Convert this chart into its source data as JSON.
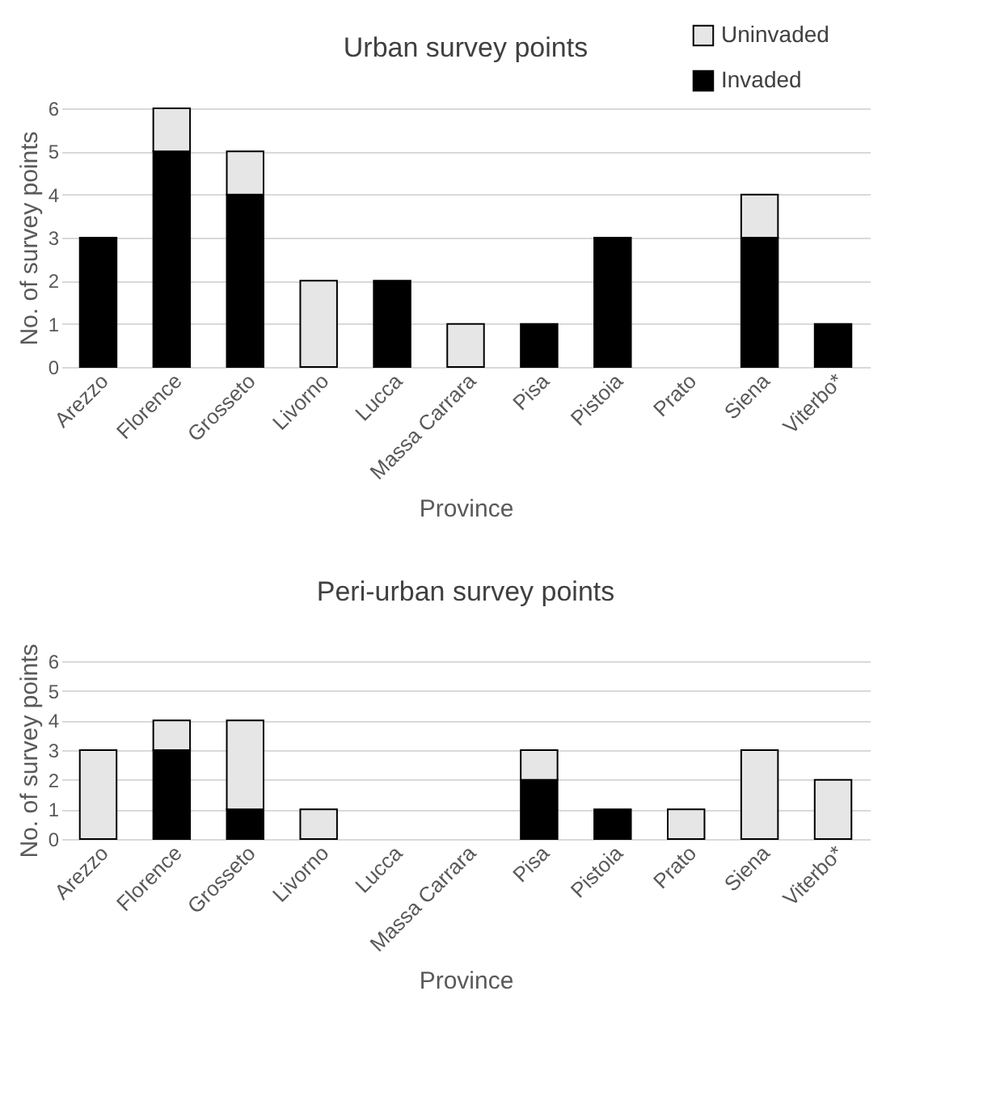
{
  "chart_data": [
    {
      "type": "bar",
      "title": "Urban survey points",
      "xlabel": "Province",
      "ylabel": "No. of survey points",
      "categories": [
        "Arezzo",
        "Florence",
        "Grosseto",
        "Livorno",
        "Lucca",
        "Massa Carrara",
        "Pisa",
        "Pistoia",
        "Prato",
        "Siena",
        "Viterbo*"
      ],
      "stacked": true,
      "ylim": [
        0,
        6
      ],
      "yticks": [
        0,
        1,
        2,
        3,
        4,
        5,
        6
      ],
      "grid": "y",
      "legend": "top right",
      "series": [
        {
          "name": "Invaded",
          "color": "#000000",
          "values": [
            3,
            5,
            4,
            0,
            2,
            0,
            1,
            3,
            0,
            3,
            1
          ]
        },
        {
          "name": "Uninvaded",
          "color": "#e7e6e6",
          "values": [
            0,
            1,
            1,
            2,
            0,
            1,
            0,
            0,
            0,
            1,
            0
          ]
        }
      ]
    },
    {
      "type": "bar",
      "title": "Peri-urban survey points",
      "xlabel": "Province",
      "ylabel": "No. of survey points",
      "categories": [
        "Arezzo",
        "Florence",
        "Grosseto",
        "Livorno",
        "Lucca",
        "Massa Carrara",
        "Pisa",
        "Pistoia",
        "Prato",
        "Siena",
        "Viterbo*"
      ],
      "stacked": true,
      "ylim": [
        0,
        6
      ],
      "yticks": [
        0,
        1,
        2,
        3,
        4,
        5,
        6
      ],
      "grid": "y",
      "legend": false,
      "series": [
        {
          "name": "Invaded",
          "color": "#000000",
          "values": [
            0,
            3,
            1,
            0,
            0,
            0,
            2,
            1,
            0,
            0,
            0
          ]
        },
        {
          "name": "Uninvaded",
          "color": "#e7e6e6",
          "values": [
            3,
            1,
            3,
            1,
            0,
            0,
            1,
            0,
            1,
            3,
            2
          ]
        }
      ]
    }
  ]
}
